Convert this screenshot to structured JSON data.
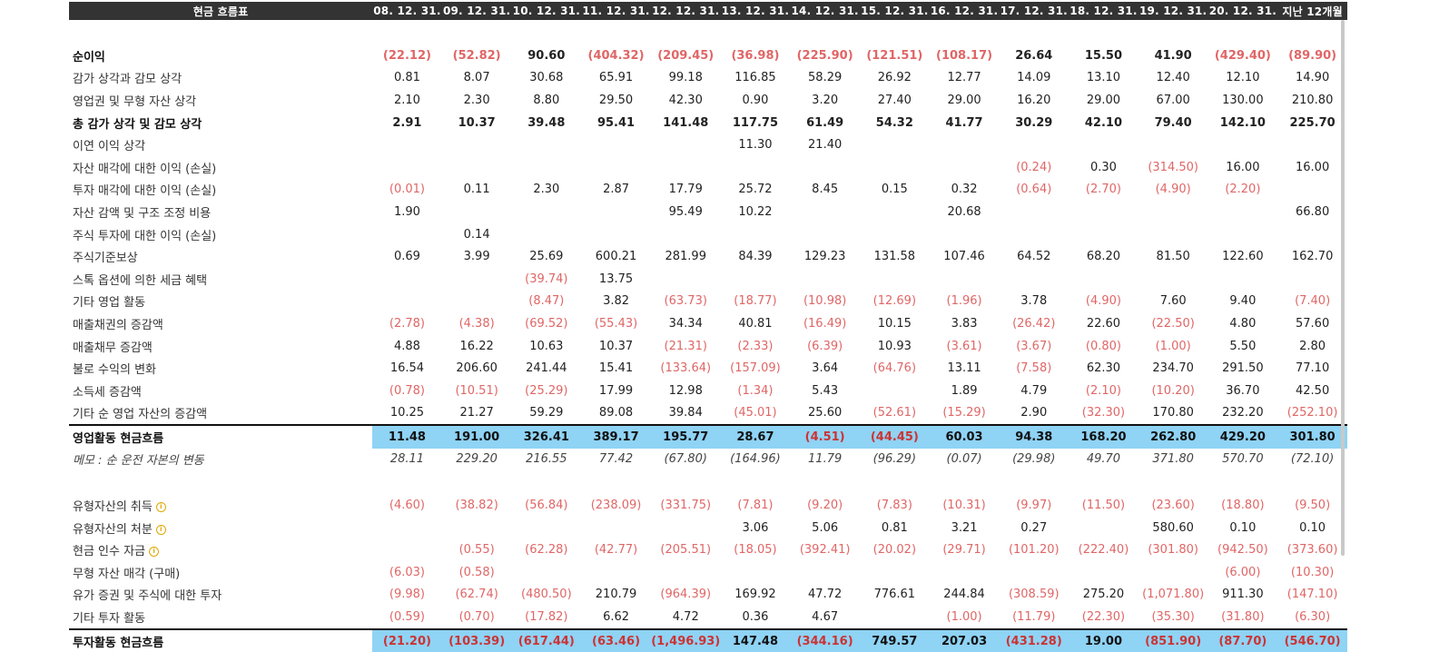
{
  "header": {
    "title": "현금 흐름표",
    "periods": [
      "08. 12. 31.",
      "09. 12. 31.",
      "10. 12. 31.",
      "11. 12. 31.",
      "12. 12. 31.",
      "13. 12. 31.",
      "14. 12. 31.",
      "15. 12. 31.",
      "16. 12. 31.",
      "17. 12. 31.",
      "18. 12. 31.",
      "19. 12. 31.",
      "20. 12. 31.",
      "지난 12개월"
    ]
  },
  "colors": {
    "negative": "#e06666",
    "total_highlight": "#8fd3f5",
    "header_bg": "#333333",
    "info_icon": "#e0a800"
  },
  "rows": [
    {
      "type": "spacer"
    },
    {
      "type": "bold",
      "label": "순이익",
      "values": [
        "(22.12)",
        "(52.82)",
        "90.60",
        "(404.32)",
        "(209.45)",
        "(36.98)",
        "(225.90)",
        "(121.51)",
        "(108.17)",
        "26.64",
        "15.50",
        "41.90",
        "(429.40)",
        "(89.90)"
      ]
    },
    {
      "type": "normal",
      "label": "감가 상각과 감모 상각",
      "values": [
        "0.81",
        "8.07",
        "30.68",
        "65.91",
        "99.18",
        "116.85",
        "58.29",
        "26.92",
        "12.77",
        "14.09",
        "13.10",
        "12.40",
        "12.10",
        "14.90"
      ]
    },
    {
      "type": "normal",
      "label": "영업권 및 무형 자산 상각",
      "values": [
        "2.10",
        "2.30",
        "8.80",
        "29.50",
        "42.30",
        "0.90",
        "3.20",
        "27.40",
        "29.00",
        "16.20",
        "29.00",
        "67.00",
        "130.00",
        "210.80"
      ]
    },
    {
      "type": "bold",
      "label": "총 감가 상각 및 감모 상각",
      "values": [
        "2.91",
        "10.37",
        "39.48",
        "95.41",
        "141.48",
        "117.75",
        "61.49",
        "54.32",
        "41.77",
        "30.29",
        "42.10",
        "79.40",
        "142.10",
        "225.70"
      ]
    },
    {
      "type": "normal",
      "label": "이연 이익 상각",
      "values": [
        "",
        "",
        "",
        "",
        "",
        "11.30",
        "21.40",
        "",
        "",
        "",
        "",
        "",
        "",
        ""
      ]
    },
    {
      "type": "normal",
      "label": "자산 매각에 대한 이익 (손실)",
      "values": [
        "",
        "",
        "",
        "",
        "",
        "",
        "",
        "",
        "",
        "(0.24)",
        "0.30",
        "(314.50)",
        "16.00",
        "16.00"
      ]
    },
    {
      "type": "normal",
      "label": "투자 매각에 대한 이익 (손실)",
      "values": [
        "(0.01)",
        "0.11",
        "2.30",
        "2.87",
        "17.79",
        "25.72",
        "8.45",
        "0.15",
        "0.32",
        "(0.64)",
        "(2.70)",
        "(4.90)",
        "(2.20)",
        ""
      ]
    },
    {
      "type": "normal",
      "label": "자산 감액 및 구조 조정 비용",
      "values": [
        "1.90",
        "",
        "",
        "",
        "95.49",
        "10.22",
        "",
        "",
        "20.68",
        "",
        "",
        "",
        "",
        "66.80"
      ]
    },
    {
      "type": "normal",
      "label": "주식 투자에 대한 이익 (손실)",
      "values": [
        "",
        "0.14",
        "",
        "",
        "",
        "",
        "",
        "",
        "",
        "",
        "",
        "",
        "",
        ""
      ]
    },
    {
      "type": "normal",
      "label": "주식기준보상",
      "values": [
        "0.69",
        "3.99",
        "25.69",
        "600.21",
        "281.99",
        "84.39",
        "129.23",
        "131.58",
        "107.46",
        "64.52",
        "68.20",
        "81.50",
        "122.60",
        "162.70"
      ]
    },
    {
      "type": "normal",
      "label": "스톡 옵션에 의한 세금 혜택",
      "values": [
        "",
        "",
        "(39.74)",
        "13.75",
        "",
        "",
        "",
        "",
        "",
        "",
        "",
        "",
        "",
        ""
      ]
    },
    {
      "type": "normal",
      "label": "기타 영업 활동",
      "values": [
        "",
        "",
        "(8.47)",
        "3.82",
        "(63.73)",
        "(18.77)",
        "(10.98)",
        "(12.69)",
        "(1.96)",
        "3.78",
        "(4.90)",
        "7.60",
        "9.40",
        "(7.40)"
      ]
    },
    {
      "type": "normal",
      "label": "매출채권의 증감액",
      "values": [
        "(2.78)",
        "(4.38)",
        "(69.52)",
        "(55.43)",
        "34.34",
        "40.81",
        "(16.49)",
        "10.15",
        "3.83",
        "(26.42)",
        "22.60",
        "(22.50)",
        "4.80",
        "57.60"
      ]
    },
    {
      "type": "normal",
      "label": "매출채무 증감액",
      "values": [
        "4.88",
        "16.22",
        "10.63",
        "10.37",
        "(21.31)",
        "(2.33)",
        "(6.39)",
        "10.93",
        "(3.61)",
        "(3.67)",
        "(0.80)",
        "(1.00)",
        "5.50",
        "2.80"
      ]
    },
    {
      "type": "normal",
      "label": "불로 수익의 변화",
      "values": [
        "16.54",
        "206.60",
        "241.44",
        "15.41",
        "(133.64)",
        "(157.09)",
        "3.64",
        "(64.76)",
        "13.11",
        "(7.58)",
        "62.30",
        "234.70",
        "291.50",
        "77.10"
      ]
    },
    {
      "type": "normal",
      "label": "소득세 증감액",
      "values": [
        "(0.78)",
        "(10.51)",
        "(25.29)",
        "17.99",
        "12.98",
        "(1.34)",
        "5.43",
        "",
        "1.89",
        "4.79",
        "(2.10)",
        "(10.20)",
        "36.70",
        "42.50"
      ]
    },
    {
      "type": "normal",
      "label": "기타 순 영업 자산의 증감액",
      "values": [
        "10.25",
        "21.27",
        "59.29",
        "89.08",
        "39.84",
        "(45.01)",
        "25.60",
        "(52.61)",
        "(15.29)",
        "2.90",
        "(32.30)",
        "170.80",
        "232.20",
        "(252.10)"
      ]
    },
    {
      "type": "total",
      "label": "영업활동 현금흐름",
      "values": [
        "11.48",
        "191.00",
        "326.41",
        "389.17",
        "195.77",
        "28.67",
        "(4.51)",
        "(44.45)",
        "60.03",
        "94.38",
        "168.20",
        "262.80",
        "429.20",
        "301.80"
      ]
    },
    {
      "type": "memo",
      "label": "메모 : 순 운전 자본의 변동",
      "values": [
        "28.11",
        "229.20",
        "216.55",
        "77.42",
        "(67.80)",
        "(164.96)",
        "11.79",
        "(96.29)",
        "(0.07)",
        "(29.98)",
        "49.70",
        "371.80",
        "570.70",
        "(72.10)"
      ]
    },
    {
      "type": "spacer2"
    },
    {
      "type": "normal",
      "label": "유형자산의 취득",
      "icon": "info-icon",
      "values": [
        "(4.60)",
        "(38.82)",
        "(56.84)",
        "(238.09)",
        "(331.75)",
        "(7.81)",
        "(9.20)",
        "(7.83)",
        "(10.31)",
        "(9.97)",
        "(11.50)",
        "(23.60)",
        "(18.80)",
        "(9.50)"
      ]
    },
    {
      "type": "normal",
      "label": "유형자산의 처분",
      "icon": "info-icon",
      "values": [
        "",
        "",
        "",
        "",
        "",
        "3.06",
        "5.06",
        "0.81",
        "3.21",
        "0.27",
        "",
        "580.60",
        "0.10",
        "0.10"
      ]
    },
    {
      "type": "normal",
      "label": "현금 인수 자금",
      "icon": "info-icon",
      "values": [
        "",
        "(0.55)",
        "(62.28)",
        "(42.77)",
        "(205.51)",
        "(18.05)",
        "(392.41)",
        "(20.02)",
        "(29.71)",
        "(101.20)",
        "(222.40)",
        "(301.80)",
        "(942.50)",
        "(373.60)"
      ]
    },
    {
      "type": "normal",
      "label": "무형 자산 매각 (구매)",
      "values": [
        "(6.03)",
        "(0.58)",
        "",
        "",
        "",
        "",
        "",
        "",
        "",
        "",
        "",
        "",
        "(6.00)",
        "(10.30)"
      ]
    },
    {
      "type": "normal",
      "label": "유가 증권 및 주식에 대한 투자",
      "values": [
        "(9.98)",
        "(62.74)",
        "(480.50)",
        "210.79",
        "(964.39)",
        "169.92",
        "47.72",
        "776.61",
        "244.84",
        "(308.59)",
        "275.20",
        "(1,071.80)",
        "911.30",
        "(147.10)"
      ]
    },
    {
      "type": "normal",
      "label": "기타 투자 활동",
      "values": [
        "(0.59)",
        "(0.70)",
        "(17.82)",
        "6.62",
        "4.72",
        "0.36",
        "4.67",
        "",
        "(1.00)",
        "(11.79)",
        "(22.30)",
        "(35.30)",
        "(31.80)",
        "(6.30)"
      ]
    },
    {
      "type": "total",
      "label": "투자활동 현금흐름",
      "values": [
        "(21.20)",
        "(103.39)",
        "(617.44)",
        "(63.46)",
        "(1,496.93)",
        "147.48",
        "(344.16)",
        "749.57",
        "207.03",
        "(431.28)",
        "19.00",
        "(851.90)",
        "(87.70)",
        "(546.70)"
      ]
    }
  ]
}
